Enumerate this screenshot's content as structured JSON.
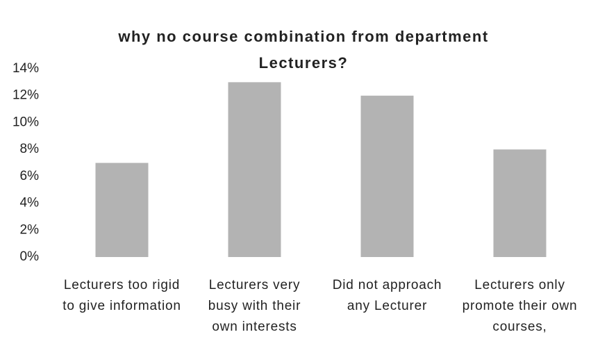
{
  "chart_data": {
    "type": "bar",
    "title": "why no course combination from department Lecturers?",
    "categories": [
      "Lecturers too rigid to give information",
      "Lecturers very busy with their own interests",
      "Did not approach any Lecturer",
      "Lecturers only promote their own courses,"
    ],
    "values": [
      7,
      13,
      12,
      8
    ],
    "color": "#b3b3b3",
    "ylim": [
      0,
      14
    ],
    "yticks": [
      {
        "value": 0,
        "label": "0%"
      },
      {
        "value": 2,
        "label": "2%"
      },
      {
        "value": 4,
        "label": "4%"
      },
      {
        "value": 6,
        "label": "6%"
      },
      {
        "value": 8,
        "label": "8%"
      },
      {
        "value": 10,
        "label": "10%"
      },
      {
        "value": 12,
        "label": "12%"
      },
      {
        "value": 14,
        "label": "14%"
      }
    ],
    "grid": false
  }
}
